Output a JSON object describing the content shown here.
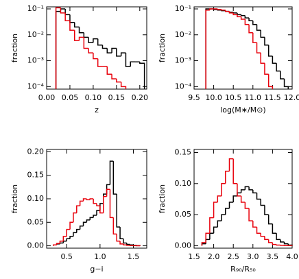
{
  "chart_data": [
    {
      "type": "histogram",
      "xlabel": "z",
      "ylabel": "fraction",
      "log_y": true,
      "xlim": [
        0,
        0.215
      ],
      "xticks": [
        {
          "value": 0,
          "label": "0.00"
        },
        0.05,
        {
          "value": 0.1,
          "label": "0.10"
        },
        0.15,
        {
          "value": 0.2,
          "label": "0.20"
        }
      ],
      "ylim": [
        8e-05,
        0.12
      ],
      "yticks": [
        {
          "value": 0.0001,
          "label": "10⁻⁴"
        },
        {
          "value": 0.001,
          "label": "10⁻³"
        },
        {
          "value": 0.01,
          "label": "10⁻²"
        },
        {
          "value": 0.1,
          "label": "10⁻¹"
        }
      ],
      "bins": [
        0.02,
        0.03,
        0.04,
        0.05,
        0.06,
        0.07,
        0.08,
        0.09,
        0.1,
        0.11,
        0.12,
        0.13,
        0.14,
        0.15,
        0.16,
        0.17,
        0.18,
        0.19,
        0.2,
        0.21
      ],
      "series": [
        {
          "color": "#000000",
          "values": [
            0.08,
            0.1,
            0.06,
            0.03,
            0.02,
            0.012,
            0.008,
            0.005,
            0.007,
            0.004,
            0.003,
            0.002,
            0.003,
            0.0015,
            0.002,
            0.0006,
            0.0009,
            0.0009,
            0.0008
          ]
        },
        {
          "color": "#e8000b",
          "values": [
            0.11,
            0.07,
            0.035,
            0.015,
            0.006,
            0.008,
            0.003,
            0.002,
            0.0012,
            0.0006,
            0.0006,
            0.0003,
            0.0002,
            0.00015,
            0.0001,
            null,
            null,
            null,
            null
          ]
        }
      ]
    },
    {
      "type": "histogram",
      "xlabel": "log(M∗/M⊙)",
      "ylabel": "fraction",
      "log_y": true,
      "xlim": [
        9.5,
        12.0
      ],
      "xticks": [
        9.5,
        {
          "value": 10,
          "label": "10.0"
        },
        10.5,
        {
          "value": 11,
          "label": "11.0"
        },
        11.5,
        {
          "value": 12,
          "label": "12.0"
        }
      ],
      "ylim": [
        8e-05,
        0.12
      ],
      "yticks": [
        {
          "value": 0.0001,
          "label": "10⁻⁴"
        },
        {
          "value": 0.001,
          "label": "10⁻³"
        },
        {
          "value": 0.01,
          "label": "10⁻²"
        },
        {
          "value": 0.1,
          "label": "10⁻¹"
        }
      ],
      "bins": [
        9.8,
        9.9,
        10.0,
        10.1,
        10.2,
        10.3,
        10.4,
        10.5,
        10.6,
        10.7,
        10.8,
        10.9,
        11.0,
        11.1,
        11.2,
        11.3,
        11.4,
        11.5,
        11.6,
        11.7,
        11.8,
        11.9
      ],
      "series": [
        {
          "color": "#000000",
          "values": [
            0.1,
            0.1,
            0.095,
            0.09,
            0.085,
            0.08,
            0.075,
            0.07,
            0.06,
            0.055,
            0.045,
            0.035,
            0.025,
            0.015,
            0.008,
            0.004,
            0.0015,
            0.0008,
            0.0004,
            0.0002,
            0.0001
          ]
        },
        {
          "color": "#e8000b",
          "values": [
            0.09,
            0.1,
            0.1,
            0.095,
            0.09,
            0.08,
            0.07,
            0.06,
            0.05,
            0.04,
            0.025,
            0.012,
            0.005,
            0.002,
            0.0008,
            0.0003,
            0.0001,
            null,
            null,
            null,
            null
          ]
        }
      ]
    },
    {
      "type": "histogram",
      "xlabel": "g−i",
      "ylabel": "fraction",
      "log_y": false,
      "xlim": [
        0.2,
        1.7
      ],
      "xticks": [
        0.5,
        {
          "value": 1,
          "label": "1.0"
        },
        1.5
      ],
      "ylim": [
        -0.005,
        0.205
      ],
      "yticks": [
        {
          "value": 0,
          "label": "0.00"
        },
        0.05,
        {
          "value": 0.1,
          "label": "0.10"
        },
        0.15,
        {
          "value": 0.2,
          "label": "0.20"
        }
      ],
      "bins": [
        0.3,
        0.35,
        0.4,
        0.45,
        0.5,
        0.55,
        0.6,
        0.65,
        0.7,
        0.75,
        0.8,
        0.85,
        0.9,
        0.95,
        1.0,
        1.05,
        1.1,
        1.15,
        1.2,
        1.25,
        1.3,
        1.35,
        1.4,
        1.45,
        1.5,
        1.55,
        1.6
      ],
      "series": [
        {
          "color": "#000000",
          "values": [
            0.002,
            0.004,
            0.006,
            0.01,
            0.015,
            0.02,
            0.028,
            0.035,
            0.042,
            0.05,
            0.055,
            0.06,
            0.065,
            0.075,
            0.09,
            0.11,
            0.13,
            0.18,
            0.11,
            0.04,
            0.015,
            0.006,
            0.003,
            0.002,
            0.001,
            0.0005
          ]
        },
        {
          "color": "#e8000b",
          "values": [
            0.002,
            0.005,
            0.01,
            0.02,
            0.035,
            0.05,
            0.07,
            0.085,
            0.095,
            0.1,
            0.098,
            0.1,
            0.09,
            0.085,
            0.07,
            0.105,
            0.12,
            0.06,
            0.025,
            0.01,
            0.004,
            0.002,
            0.001,
            0.0005,
            0.0002,
            0.0001
          ]
        }
      ]
    },
    {
      "type": "histogram",
      "xlabel": "R₉₀/R₅₀",
      "ylabel": "fraction",
      "log_y": false,
      "xlim": [
        1.5,
        4.0
      ],
      "xticks": [
        1.5,
        {
          "value": 2,
          "label": "2.0"
        },
        2.5,
        {
          "value": 3,
          "label": "3.0"
        },
        3.5,
        {
          "value": 4,
          "label": "4.0"
        }
      ],
      "ylim": [
        -0.004,
        0.155
      ],
      "yticks": [
        {
          "value": 0,
          "label": "0.00"
        },
        0.05,
        {
          "value": 0.1,
          "label": "0.10"
        },
        0.15
      ],
      "bins": [
        1.7,
        1.8,
        1.9,
        2.0,
        2.1,
        2.2,
        2.3,
        2.4,
        2.5,
        2.6,
        2.7,
        2.8,
        2.9,
        3.0,
        3.1,
        3.2,
        3.3,
        3.4,
        3.5,
        3.6,
        3.7,
        3.8,
        3.9,
        4.0
      ],
      "series": [
        {
          "color": "#000000",
          "values": [
            0.003,
            0.01,
            0.02,
            0.03,
            0.04,
            0.05,
            0.06,
            0.07,
            0.08,
            0.085,
            0.09,
            0.095,
            0.09,
            0.085,
            0.075,
            0.065,
            0.05,
            0.035,
            0.02,
            0.01,
            0.006,
            0.003,
            0.001
          ]
        },
        {
          "color": "#e8000b",
          "values": [
            0.005,
            0.02,
            0.045,
            0.07,
            0.08,
            0.1,
            0.12,
            0.14,
            0.1,
            0.08,
            0.07,
            0.06,
            0.04,
            0.03,
            0.02,
            0.015,
            0.01,
            0.005,
            0.002,
            0.001,
            0.0005,
            0.0002,
            0.0001
          ]
        }
      ]
    }
  ]
}
